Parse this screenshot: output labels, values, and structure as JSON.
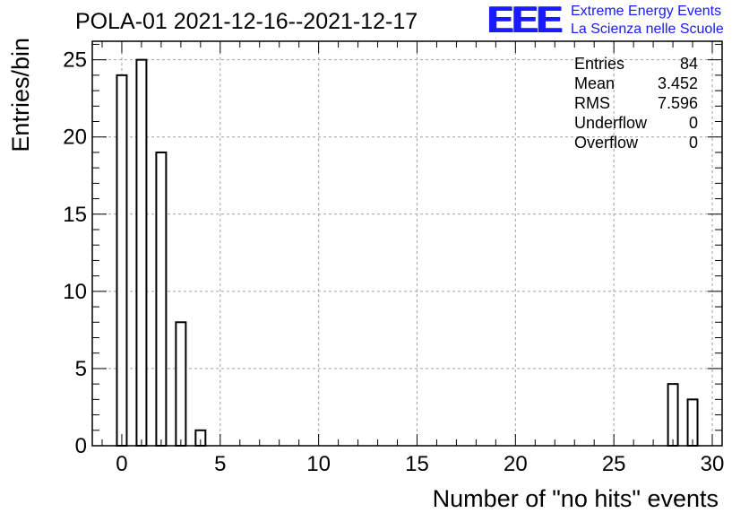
{
  "header": {
    "title": "POLA-01 2021-12-16--2021-12-17",
    "logo_mark": "EEE",
    "logo_line1": "Extreme Energy Events",
    "logo_line2": "La Scienza nelle Scuole"
  },
  "stats": [
    {
      "label": "Entries",
      "value": "84"
    },
    {
      "label": "Mean",
      "value": "3.452"
    },
    {
      "label": "RMS",
      "value": "7.596"
    },
    {
      "label": "Underflow",
      "value": "0"
    },
    {
      "label": "Overflow",
      "value": "0"
    }
  ],
  "chart_data": {
    "type": "bar",
    "title": "POLA-01 2021-12-16--2021-12-17",
    "xlabel": "Number of \"no hits\" events",
    "ylabel": "Entries/bin",
    "xlim": [
      -1.5,
      30.5
    ],
    "ylim": [
      0,
      26.2
    ],
    "bin_width": 0.5,
    "x": [
      0,
      1,
      2,
      3,
      4,
      28,
      29
    ],
    "values": [
      24,
      25,
      19,
      8,
      1,
      4,
      3
    ],
    "xticks": [
      0,
      5,
      10,
      15,
      20,
      25,
      30
    ],
    "yticks": [
      0,
      5,
      10,
      15,
      20,
      25
    ],
    "grid": true,
    "bar_color": "#ffffff",
    "edge_color": "#000000"
  }
}
